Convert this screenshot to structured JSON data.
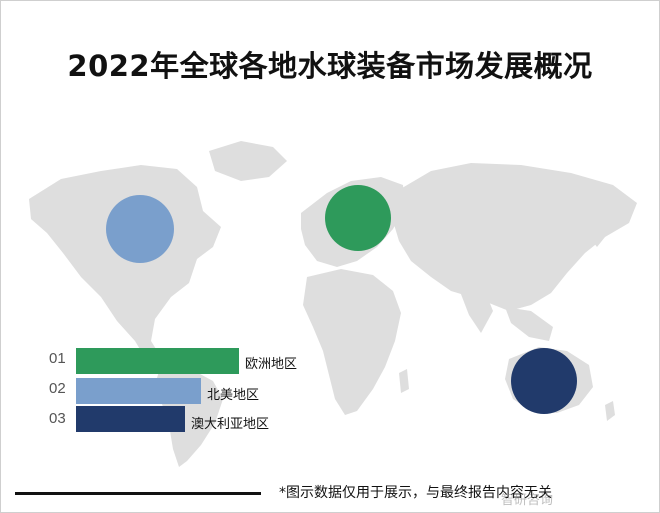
{
  "title": "2022年全球各地水球装备市场发展概况",
  "chart_data": {
    "type": "bar",
    "orientation": "horizontal",
    "categories": [
      "欧洲地区",
      "北美地区",
      "澳大利亚地区"
    ],
    "ranks": [
      "01",
      "02",
      "03"
    ],
    "values": [
      3,
      2.3,
      2
    ],
    "colors": [
      "#2e9a5b",
      "#7a9fcc",
      "#213a6b"
    ],
    "map_markers": [
      {
        "region": "北美地区",
        "color": "#7a9fcc"
      },
      {
        "region": "欧洲地区",
        "color": "#2e9a5b"
      },
      {
        "region": "澳大利亚地区",
        "color": "#213a6b"
      }
    ]
  },
  "footnote": "*图示数据仅用于展示，与最终报告内容无关",
  "watermark": "智研咨询"
}
